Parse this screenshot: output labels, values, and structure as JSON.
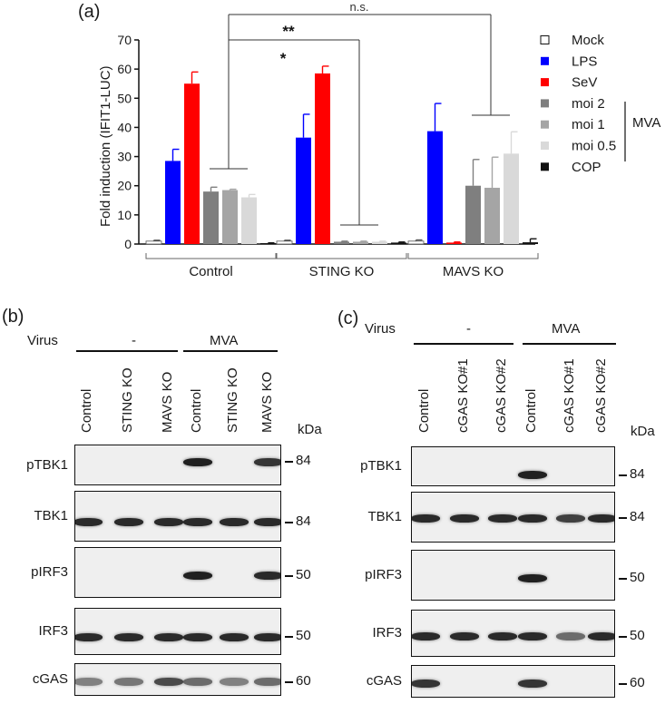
{
  "panel_a": {
    "label": "(a)",
    "chart_data": {
      "type": "bar",
      "ylabel": "Fold induction (IFIT1-LUC)",
      "ylim": [
        0,
        70
      ],
      "yticks": [
        "0",
        "10",
        "20",
        "30",
        "40",
        "50",
        "60",
        "70"
      ],
      "groups": [
        "Control",
        "STING KO",
        "MAVS KO"
      ],
      "series": [
        {
          "name": "Mock",
          "color": "#ffffff",
          "values": [
            1,
            1,
            1
          ],
          "errors": [
            0.3,
            0.3,
            0.4
          ]
        },
        {
          "name": "LPS",
          "color": "#0000ff",
          "values": [
            28.5,
            36.5,
            38.7
          ],
          "errors": [
            4,
            8,
            9.5
          ]
        },
        {
          "name": "SeV",
          "color": "#ff0000",
          "values": [
            55,
            58.5,
            0.5
          ],
          "errors": [
            4,
            2.5,
            0.2
          ]
        },
        {
          "name": "moi 2",
          "color": "#7f7f7f",
          "values": [
            18,
            0.8,
            20
          ],
          "errors": [
            1.5,
            0.2,
            9
          ]
        },
        {
          "name": "moi 1",
          "color": "#a5a5a5",
          "values": [
            18.5,
            0.8,
            19.3
          ],
          "errors": [
            0.3,
            0.2,
            10.5
          ]
        },
        {
          "name": "moi 0.5",
          "color": "#d9d9d9",
          "values": [
            16,
            0.8,
            31
          ],
          "errors": [
            1,
            0.2,
            7.5
          ]
        },
        {
          "name": "COP",
          "color": "#111111",
          "values": [
            0.3,
            0.5,
            0.6
          ],
          "errors": [
            0.1,
            0.2,
            1.2
          ]
        }
      ],
      "mva_label": "MVA",
      "annotations": [
        "n.s.",
        "**",
        "*"
      ]
    }
  },
  "panel_b": {
    "label": "(b)",
    "virus_label": "Virus",
    "groups": [
      "-",
      "MVA"
    ],
    "lanes": [
      "Control",
      "STING KO",
      "MAVS KO",
      "Control",
      "STING KO",
      "MAVS KO"
    ],
    "kda_label": "kDa",
    "rows": [
      {
        "name": "pTBK1",
        "kda": "84",
        "bands": [
          0,
          0,
          0,
          0.95,
          0,
          0.85
        ]
      },
      {
        "name": "TBK1",
        "kda": "84",
        "bands": [
          0.9,
          0.9,
          0.9,
          0.9,
          0.9,
          0.9
        ]
      },
      {
        "name": "pIRF3",
        "kda": "50",
        "bands": [
          0,
          0,
          0,
          0.95,
          0,
          0.9
        ]
      },
      {
        "name": "IRF3",
        "kda": "50",
        "bands": [
          0.9,
          0.9,
          0.9,
          0.9,
          0.9,
          0.9
        ]
      },
      {
        "name": "cGAS",
        "kda": "60",
        "bands": [
          0.5,
          0.55,
          0.75,
          0.6,
          0.5,
          0.6
        ]
      }
    ]
  },
  "panel_c": {
    "label": "(c)",
    "virus_label": "Virus",
    "groups": [
      "-",
      "MVA"
    ],
    "lanes": [
      "Control",
      "cGAS KO#1",
      "cGAS KO#2",
      "Control",
      "cGAS KO#1",
      "cGAS KO#2"
    ],
    "kda_label": "kDa",
    "rows": [
      {
        "name": "pTBK1",
        "kda": "84",
        "bands": [
          0,
          0,
          0,
          0.95,
          0,
          0
        ]
      },
      {
        "name": "TBK1",
        "kda": "84",
        "bands": [
          0.9,
          0.9,
          0.9,
          0.9,
          0.8,
          0.9
        ]
      },
      {
        "name": "pIRF3",
        "kda": "50",
        "bands": [
          0,
          0,
          0,
          0.95,
          0,
          0
        ]
      },
      {
        "name": "IRF3",
        "kda": "50",
        "bands": [
          0.9,
          0.9,
          0.9,
          0.9,
          0.6,
          0.9
        ]
      },
      {
        "name": "cGAS",
        "kda": "60",
        "bands": [
          0.85,
          0,
          0,
          0.85,
          0,
          0
        ]
      }
    ]
  }
}
